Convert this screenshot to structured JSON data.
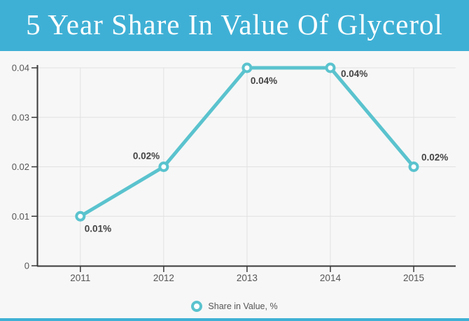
{
  "header": {
    "title": "5 Year Share In Value Of Glycerol",
    "background_color": "#3fb0d5",
    "text_color": "#ffffff"
  },
  "chart_data": {
    "type": "line",
    "title": "5 Year Share In Value Of Glycerol",
    "categories": [
      "2011",
      "2012",
      "2013",
      "2014",
      "2015"
    ],
    "series": [
      {
        "name": "Share in Value, %",
        "values": [
          0.01,
          0.02,
          0.04,
          0.04,
          0.02
        ]
      }
    ],
    "point_labels": [
      "0.01%",
      "0.02%",
      "0.04%",
      "0.04%",
      "0.02%"
    ],
    "xlabel": "",
    "ylabel": "",
    "ylim": [
      0,
      0.04
    ],
    "y_ticks": [
      0,
      0.01,
      0.02,
      0.03,
      0.04
    ],
    "y_tick_labels": [
      "0",
      "0.01",
      "0.02",
      "0.03",
      "0.04"
    ],
    "grid": true,
    "legend_position": "bottom",
    "line_color": "#5ac3ce",
    "marker_style": "open-circle",
    "marker_fill": "#ffffff",
    "grid_color": "#e1e1e1",
    "axis_color": "#3a3a3a",
    "tick_label_color": "#555555",
    "point_label_color": "#444444",
    "plot_background": "#f7f7f7",
    "header_background": "#3fb0d5"
  },
  "legend": {
    "label": "Share in Value, %",
    "marker_color": "#5ac3ce"
  }
}
